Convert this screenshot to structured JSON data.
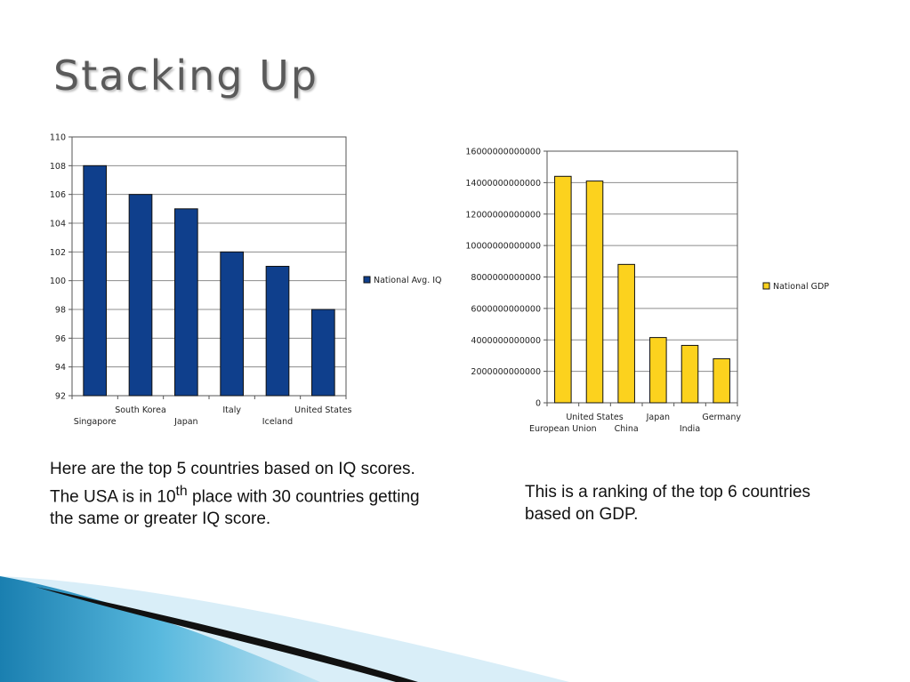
{
  "slide": {
    "title": "Stacking Up",
    "caption_iq": {
      "before": "Here are the top 5 countries based on IQ scores.  The USA is in 10",
      "sup": "th",
      "after": " place with 30 countries getting the same or greater IQ score."
    },
    "caption_gdp": "This is a ranking of the top 6 countries based on GDP."
  },
  "chart_data": [
    {
      "type": "bar",
      "categories": [
        "Singapore",
        "South Korea",
        "Japan",
        "Italy",
        "Iceland",
        "United States"
      ],
      "series": [
        {
          "name": "National Avg. IQ",
          "values": [
            108,
            106,
            105,
            102,
            101,
            98
          ],
          "color": "#0f3f8c"
        }
      ],
      "ylim": [
        92,
        110
      ],
      "yticks": [
        "92",
        "94",
        "96",
        "98",
        "100",
        "102",
        "104",
        "106",
        "108",
        "110"
      ],
      "grid": true,
      "legend": "right"
    },
    {
      "type": "bar",
      "categories": [
        "European Union",
        "United States",
        "China",
        "Japan",
        "India",
        "Germany"
      ],
      "series": [
        {
          "name": "National GDP",
          "values": [
            14400000000000,
            14100000000000,
            8800000000000,
            4150000000000,
            3650000000000,
            2800000000000
          ],
          "color": "#fcd21e"
        }
      ],
      "ylim": [
        0,
        16000000000000
      ],
      "yticks": [
        "0",
        "2000000000000",
        "4000000000000",
        "6000000000000",
        "8000000000000",
        "10000000000000",
        "12000000000000",
        "14000000000000",
        "16000000000000"
      ],
      "grid": true,
      "legend": "right"
    }
  ]
}
